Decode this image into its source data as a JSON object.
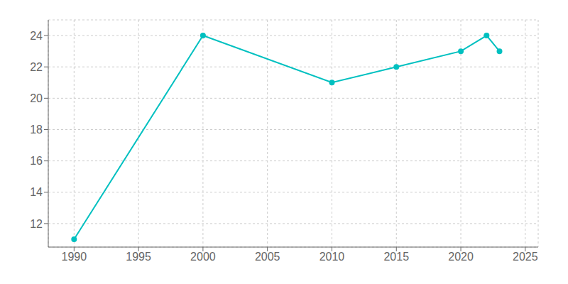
{
  "chart_data": {
    "type": "line",
    "x": [
      1990,
      2000,
      2010,
      2015,
      2020,
      2022,
      2023
    ],
    "values": [
      11,
      24,
      21,
      22,
      23,
      24,
      23
    ],
    "color": "#00C0C0",
    "marker": "circle",
    "xlim": [
      1988,
      2026
    ],
    "xticks": [
      1990,
      1995,
      2000,
      2005,
      2010,
      2015,
      2020,
      2025
    ],
    "ylim": [
      10.5,
      25.0
    ],
    "yticks": [
      12,
      14,
      16,
      18,
      20,
      22,
      24
    ],
    "grid": true
  }
}
